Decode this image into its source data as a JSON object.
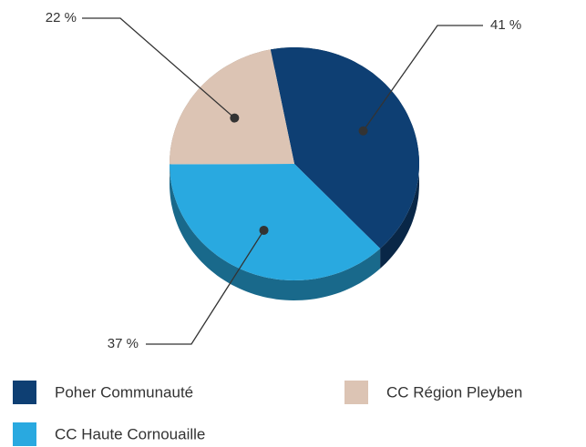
{
  "chart_data": {
    "type": "pie",
    "categories": [
      "Poher Communauté",
      "CC Haute Cornouaille",
      "CC Région Pleyben"
    ],
    "values": [
      41,
      37,
      22
    ],
    "value_labels": [
      "41 %",
      "37 %",
      "22 %"
    ],
    "colors": [
      "#0e3f73",
      "#29a9e0",
      "#dcc4b4"
    ],
    "legend": "bottom"
  }
}
